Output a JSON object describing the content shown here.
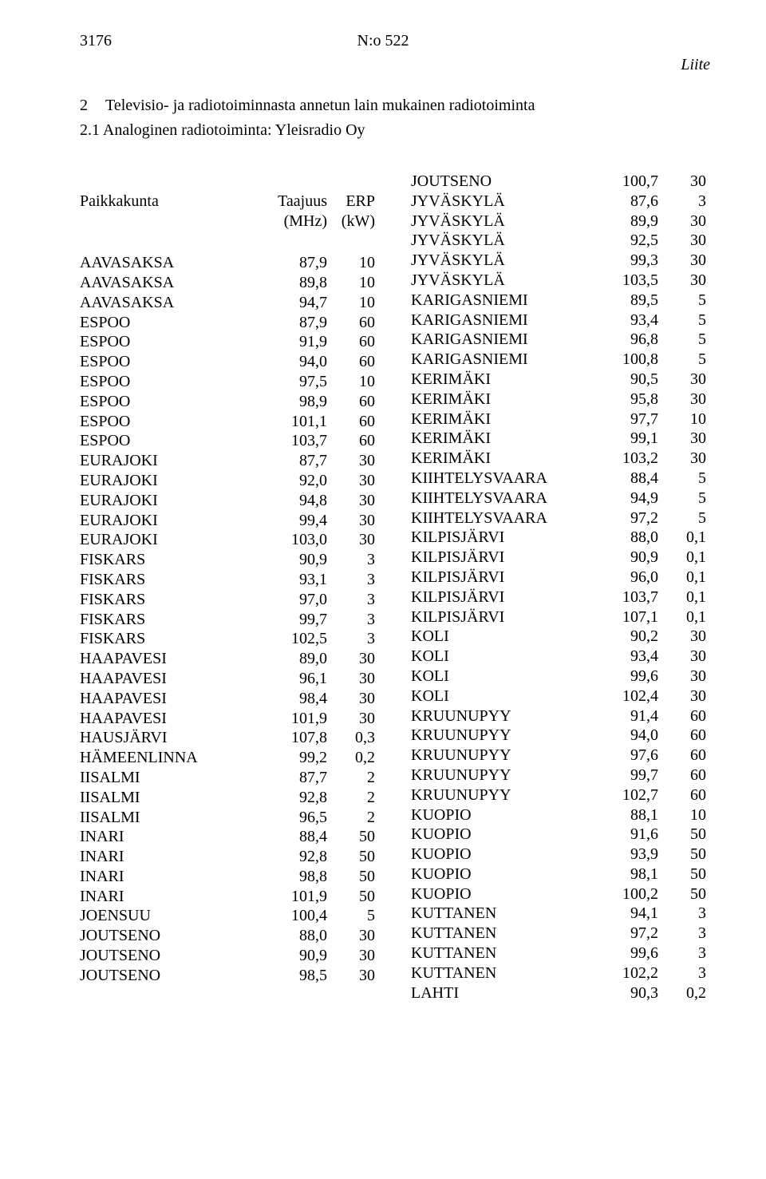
{
  "header": {
    "page_num": "3176",
    "doc_ref": "N:o 522",
    "liite": "Liite"
  },
  "section": {
    "num": "2",
    "title": "Televisio- ja radiotoiminnasta annetun lain mukainen radiotoiminta",
    "sub": "2.1 Analoginen radiotoiminta: Yleisradio Oy"
  },
  "col_headers": {
    "h1a": "Paikkakunta",
    "h2a": "Taajuus",
    "h3a": "ERP",
    "h1b": "",
    "h2b": "(MHz)",
    "h3b": "(kW)"
  },
  "left_rows": [
    {
      "c1": "AAVASAKSA",
      "c2": "87,9",
      "c3": "10"
    },
    {
      "c1": "AAVASAKSA",
      "c2": "89,8",
      "c3": "10"
    },
    {
      "c1": "AAVASAKSA",
      "c2": "94,7",
      "c3": "10"
    },
    {
      "c1": "ESPOO",
      "c2": "87,9",
      "c3": "60"
    },
    {
      "c1": "ESPOO",
      "c2": "91,9",
      "c3": "60"
    },
    {
      "c1": "ESPOO",
      "c2": "94,0",
      "c3": "60"
    },
    {
      "c1": "ESPOO",
      "c2": "97,5",
      "c3": "10"
    },
    {
      "c1": "ESPOO",
      "c2": "98,9",
      "c3": "60"
    },
    {
      "c1": "ESPOO",
      "c2": "101,1",
      "c3": "60"
    },
    {
      "c1": "ESPOO",
      "c2": "103,7",
      "c3": "60"
    },
    {
      "c1": "EURAJOKI",
      "c2": "87,7",
      "c3": "30"
    },
    {
      "c1": "EURAJOKI",
      "c2": "92,0",
      "c3": "30"
    },
    {
      "c1": "EURAJOKI",
      "c2": "94,8",
      "c3": "30"
    },
    {
      "c1": "EURAJOKI",
      "c2": "99,4",
      "c3": "30"
    },
    {
      "c1": "EURAJOKI",
      "c2": "103,0",
      "c3": "30"
    },
    {
      "c1": "FISKARS",
      "c2": "90,9",
      "c3": "3"
    },
    {
      "c1": "FISKARS",
      "c2": "93,1",
      "c3": "3"
    },
    {
      "c1": "FISKARS",
      "c2": "97,0",
      "c3": "3"
    },
    {
      "c1": "FISKARS",
      "c2": "99,7",
      "c3": "3"
    },
    {
      "c1": "FISKARS",
      "c2": "102,5",
      "c3": "3"
    },
    {
      "c1": "HAAPAVESI",
      "c2": "89,0",
      "c3": "30"
    },
    {
      "c1": "HAAPAVESI",
      "c2": "96,1",
      "c3": "30"
    },
    {
      "c1": "HAAPAVESI",
      "c2": "98,4",
      "c3": "30"
    },
    {
      "c1": "HAAPAVESI",
      "c2": "101,9",
      "c3": "30"
    },
    {
      "c1": "HAUSJÄRVI",
      "c2": "107,8",
      "c3": "0,3"
    },
    {
      "c1": "HÄMEENLINNA",
      "c2": "99,2",
      "c3": "0,2"
    },
    {
      "c1": "IISALMI",
      "c2": "87,7",
      "c3": "2"
    },
    {
      "c1": "IISALMI",
      "c2": "92,8",
      "c3": "2"
    },
    {
      "c1": "IISALMI",
      "c2": "96,5",
      "c3": "2"
    },
    {
      "c1": "INARI",
      "c2": "88,4",
      "c3": "50"
    },
    {
      "c1": "INARI",
      "c2": "92,8",
      "c3": "50"
    },
    {
      "c1": "INARI",
      "c2": "98,8",
      "c3": "50"
    },
    {
      "c1": "INARI",
      "c2": "101,9",
      "c3": "50"
    },
    {
      "c1": "JOENSUU",
      "c2": "100,4",
      "c3": "5"
    },
    {
      "c1": "JOUTSENO",
      "c2": "88,0",
      "c3": "30"
    },
    {
      "c1": "JOUTSENO",
      "c2": "90,9",
      "c3": "30"
    },
    {
      "c1": "JOUTSENO",
      "c2": "98,5",
      "c3": "30"
    }
  ],
  "right_rows": [
    {
      "c1": "JOUTSENO",
      "c2": "100,7",
      "c3": "30"
    },
    {
      "c1": "JYVÄSKYLÄ",
      "c2": "87,6",
      "c3": "3"
    },
    {
      "c1": "JYVÄSKYLÄ",
      "c2": "89,9",
      "c3": "30"
    },
    {
      "c1": "JYVÄSKYLÄ",
      "c2": "92,5",
      "c3": "30"
    },
    {
      "c1": "JYVÄSKYLÄ",
      "c2": "99,3",
      "c3": "30"
    },
    {
      "c1": "JYVÄSKYLÄ",
      "c2": "103,5",
      "c3": "30"
    },
    {
      "c1": "KARIGASNIEMI",
      "c2": "89,5",
      "c3": "5"
    },
    {
      "c1": "KARIGASNIEMI",
      "c2": "93,4",
      "c3": "5"
    },
    {
      "c1": "KARIGASNIEMI",
      "c2": "96,8",
      "c3": "5"
    },
    {
      "c1": "KARIGASNIEMI",
      "c2": "100,8",
      "c3": "5"
    },
    {
      "c1": "KERIMÄKI",
      "c2": "90,5",
      "c3": "30"
    },
    {
      "c1": "KERIMÄKI",
      "c2": "95,8",
      "c3": "30"
    },
    {
      "c1": "KERIMÄKI",
      "c2": "97,7",
      "c3": "10"
    },
    {
      "c1": "KERIMÄKI",
      "c2": "99,1",
      "c3": "30"
    },
    {
      "c1": "KERIMÄKI",
      "c2": "103,2",
      "c3": "30"
    },
    {
      "c1": "KIIHTELYSVAARA",
      "c2": "88,4",
      "c3": "5"
    },
    {
      "c1": "KIIHTELYSVAARA",
      "c2": "94,9",
      "c3": "5"
    },
    {
      "c1": "KIIHTELYSVAARA",
      "c2": "97,2",
      "c3": "5"
    },
    {
      "c1": "KILPISJÄRVI",
      "c2": "88,0",
      "c3": "0,1"
    },
    {
      "c1": "KILPISJÄRVI",
      "c2": "90,9",
      "c3": "0,1"
    },
    {
      "c1": "KILPISJÄRVI",
      "c2": "96,0",
      "c3": "0,1"
    },
    {
      "c1": "KILPISJÄRVI",
      "c2": "103,7",
      "c3": "0,1"
    },
    {
      "c1": "KILPISJÄRVI",
      "c2": "107,1",
      "c3": "0,1"
    },
    {
      "c1": "KOLI",
      "c2": "90,2",
      "c3": "30"
    },
    {
      "c1": "KOLI",
      "c2": "93,4",
      "c3": "30"
    },
    {
      "c1": "KOLI",
      "c2": "99,6",
      "c3": "30"
    },
    {
      "c1": "KOLI",
      "c2": "102,4",
      "c3": "30"
    },
    {
      "c1": "KRUUNUPYY",
      "c2": "91,4",
      "c3": "60"
    },
    {
      "c1": "KRUUNUPYY",
      "c2": "94,0",
      "c3": "60"
    },
    {
      "c1": "KRUUNUPYY",
      "c2": "97,6",
      "c3": "60"
    },
    {
      "c1": "KRUUNUPYY",
      "c2": "99,7",
      "c3": "60"
    },
    {
      "c1": "KRUUNUPYY",
      "c2": "102,7",
      "c3": "60"
    },
    {
      "c1": "KUOPIO",
      "c2": "88,1",
      "c3": "10"
    },
    {
      "c1": "KUOPIO",
      "c2": "91,6",
      "c3": "50"
    },
    {
      "c1": "KUOPIO",
      "c2": "93,9",
      "c3": "50"
    },
    {
      "c1": "KUOPIO",
      "c2": "98,1",
      "c3": "50"
    },
    {
      "c1": "KUOPIO",
      "c2": "100,2",
      "c3": "50"
    },
    {
      "c1": "KUTTANEN",
      "c2": "94,1",
      "c3": "3"
    },
    {
      "c1": "KUTTANEN",
      "c2": "97,2",
      "c3": "3"
    },
    {
      "c1": "KUTTANEN",
      "c2": "99,6",
      "c3": "3"
    },
    {
      "c1": "KUTTANEN",
      "c2": "102,2",
      "c3": "3"
    },
    {
      "c1": "LAHTI",
      "c2": "90,3",
      "c3": "0,2"
    }
  ]
}
